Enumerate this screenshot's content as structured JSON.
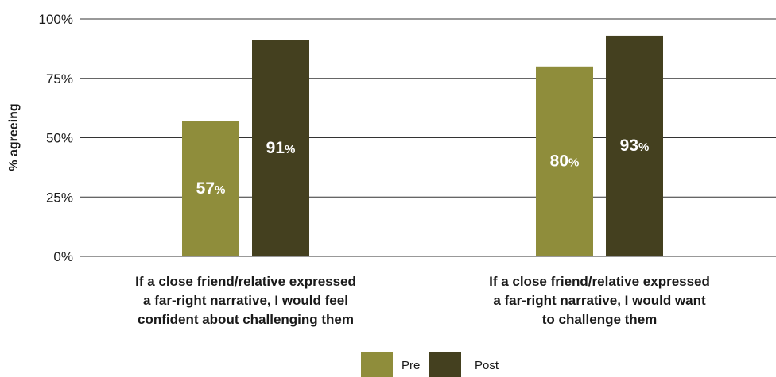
{
  "chart_data": {
    "type": "bar",
    "ylabel": "% agreeing",
    "ylim": [
      0,
      100
    ],
    "yticks": [
      0,
      25,
      50,
      75,
      100
    ],
    "ytick_suffix": "%",
    "value_suffix": "%",
    "grid": true,
    "legend_position": "bottom-center",
    "categories": [
      [
        "If a close friend/relative expressed",
        "a far-right narrative, I would feel",
        "confident about challenging them"
      ],
      [
        "If a close friend/relative expressed",
        "a far-right narrative, I would want",
        "to challenge them"
      ]
    ],
    "series": [
      {
        "name": "Pre",
        "color": "#8f8d3b",
        "values": [
          57,
          80
        ]
      },
      {
        "name": "Post",
        "color": "#44401f",
        "values": [
          91,
          93
        ]
      }
    ]
  }
}
